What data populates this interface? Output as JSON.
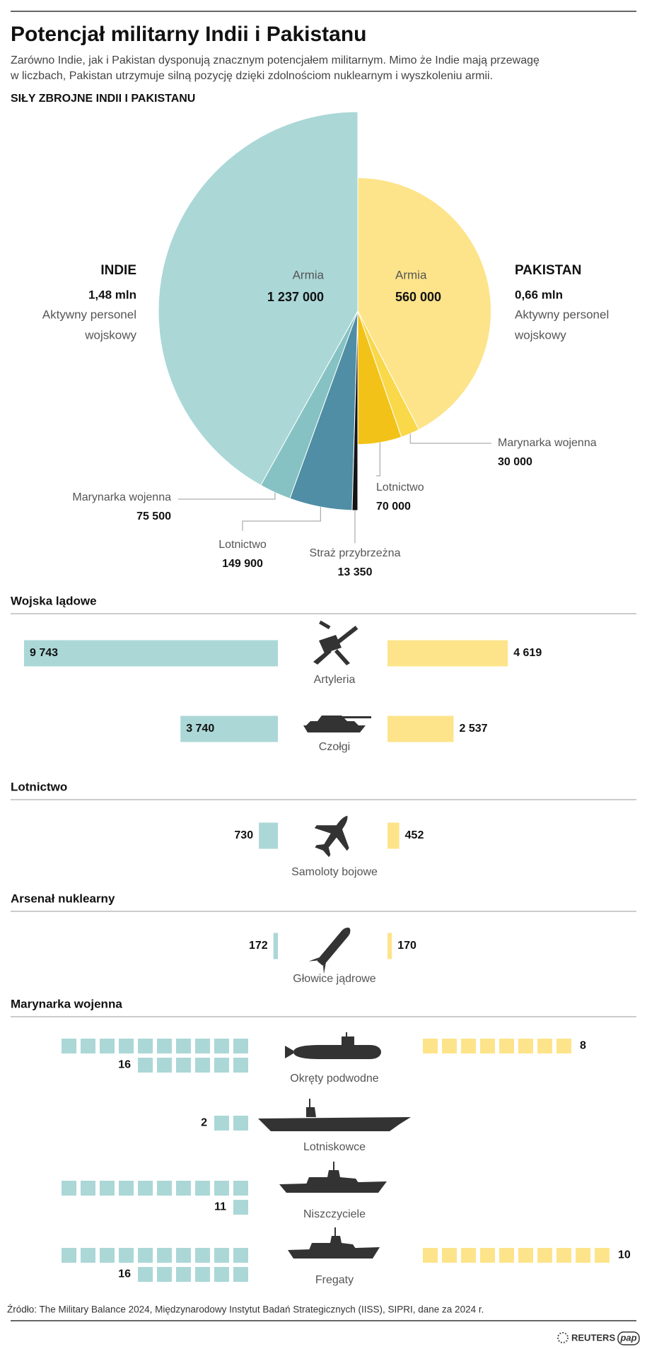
{
  "title": "Potencjał militarny Indii i Pakistanu",
  "subtitle_lines": [
    "Zarówno Indie, jak i Pakistan dysponują znacznym potencjałem militarnym. Mimo że Indie mają przewagę",
    "w liczbach, Pakistan utrzymuje silną pozycję dzięki zdolnościom nuklearnym i wyszkoleniu armii."
  ],
  "chart_data": [
    {
      "type": "pie",
      "title": "SIŁY ZBROJNE INDII I PAKISTANU",
      "series": [
        {
          "name": "INDIE",
          "total_label": "1,48 mln",
          "note_lines": [
            "Aktywny personel",
            "wojskowy"
          ],
          "categories": [
            "Armia",
            "Marynarka wojenna",
            "Lotnictwo",
            "Straż przybrzeżna"
          ],
          "values": [
            1237000,
            75500,
            149900,
            13350
          ],
          "value_labels": [
            "1 237 000",
            "75 500",
            "149 900",
            "13 350"
          ],
          "colors": [
            "#abd7d7",
            "#86c2c3",
            "#4f8ea5",
            "#141414"
          ]
        },
        {
          "name": "PAKISTAN",
          "total_label": "0,66 mln",
          "note_lines": [
            "Aktywny personel",
            "wojskowy"
          ],
          "categories": [
            "Armia",
            "Marynarka wojenna",
            "Lotnictwo"
          ],
          "values": [
            560000,
            30000,
            70000
          ],
          "value_labels": [
            "560 000",
            "30 000",
            "70 000"
          ],
          "colors": [
            "#fde48a",
            "#f9d84a",
            "#f2c218"
          ]
        }
      ]
    },
    {
      "type": "bar",
      "title": "Wojska lądowe",
      "categories": [
        "Artyleria",
        "Czołgi"
      ],
      "series": [
        {
          "color": "#abd7d7",
          "values": [
            9743,
            3740
          ],
          "value_labels": [
            "9 743",
            "3 740"
          ]
        },
        {
          "color": "#fde48a",
          "values": [
            4619,
            2537
          ],
          "value_labels": [
            "4 619",
            "2 537"
          ]
        }
      ]
    },
    {
      "type": "bar",
      "title": "Lotnictwo",
      "categories": [
        "Samoloty bojowe"
      ],
      "series": [
        {
          "color": "#abd7d7",
          "values": [
            730
          ]
        },
        {
          "color": "#fde48a",
          "values": [
            452
          ]
        }
      ]
    },
    {
      "type": "bar",
      "title": "Arsenał nuklearny",
      "categories": [
        "Głowice jądrowe"
      ],
      "series": [
        {
          "color": "#abd7d7",
          "values": [
            172
          ]
        },
        {
          "color": "#fde48a",
          "values": [
            170
          ]
        }
      ]
    },
    {
      "type": "unit",
      "title": "Marynarka wojenna",
      "categories": [
        "Okręty podwodne",
        "Lotniskowce",
        "Niszczyciele",
        "Fregaty"
      ],
      "series": [
        {
          "color": "#abd7d7",
          "values": [
            16,
            2,
            11,
            16
          ]
        },
        {
          "color": "#fde48a",
          "values": [
            8,
            null,
            null,
            10
          ]
        }
      ]
    }
  ],
  "footer": {
    "source": "Źródło: The Military Balance 2024, Międzynarodowy Instytut Badań Strategicznych (IISS), SIPRI, dane za 2024 r.",
    "brands": [
      "REUTERS",
      "pap"
    ]
  }
}
